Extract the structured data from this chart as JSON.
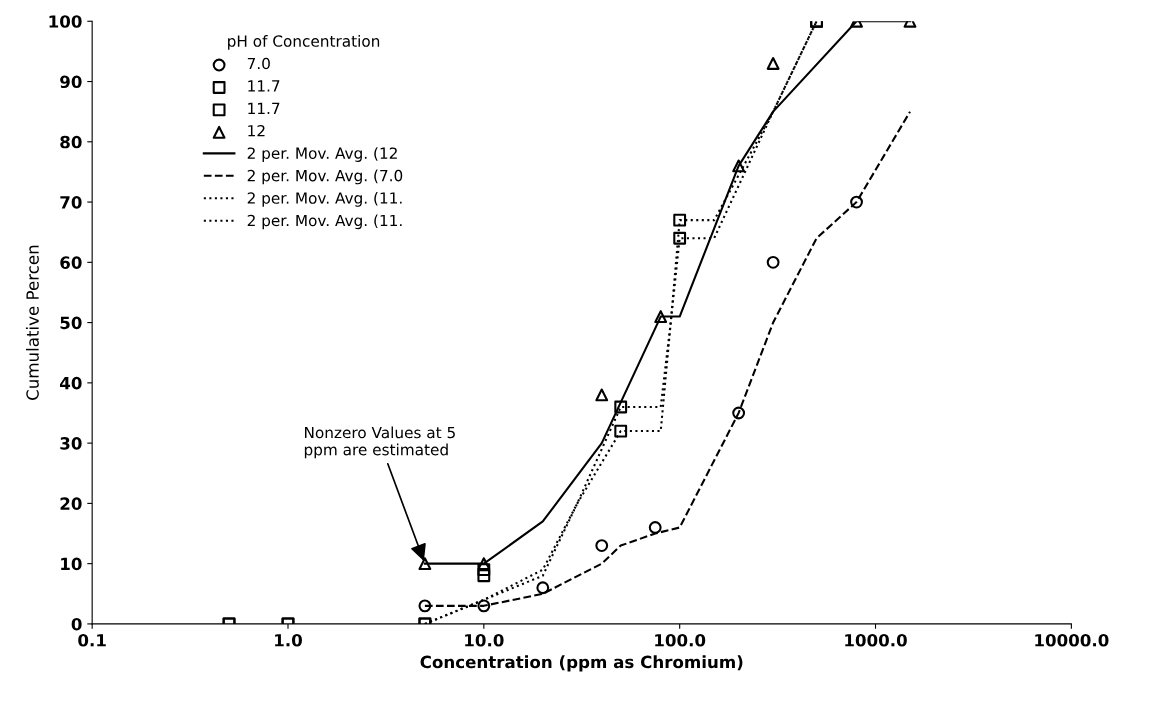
{
  "chart_data": {
    "type": "scatter",
    "xlabel": "Concentration (ppm as Chromium)",
    "ylabel": "Cumulative Percen",
    "legend_title": "pH of Concentration",
    "legend": "top left",
    "log": "x",
    "grid": false,
    "xlim": [
      0.1,
      10000
    ],
    "xticks": [
      {
        "value": 0.1,
        "label": "0.1"
      },
      {
        "value": 1,
        "label": "1.0"
      },
      {
        "value": 10,
        "label": "10.0"
      },
      {
        "value": 100,
        "label": "100.0"
      },
      {
        "value": 1000,
        "label": "1000.0"
      },
      {
        "value": 10000,
        "label": "10000.0"
      }
    ],
    "ylim": [
      0,
      100
    ],
    "yticks": [
      0,
      10,
      20,
      30,
      40,
      50,
      60,
      70,
      80,
      90,
      100
    ],
    "annotations": [
      {
        "text": "Nonzero Values at 5\nppm are estimated",
        "x": 5,
        "y": 10
      }
    ],
    "series": [
      {
        "name": "7.0",
        "marker": "circle",
        "color": "#000000",
        "x": [
          5,
          10,
          20,
          40,
          75,
          200,
          300,
          800
        ],
        "values": [
          3,
          3,
          6,
          13,
          16,
          35,
          60,
          70
        ]
      },
      {
        "name": "11.7",
        "marker": "square",
        "color": "#000000",
        "x": [
          0.5,
          1,
          5,
          10,
          50,
          100,
          500
        ],
        "values": [
          0,
          0,
          0,
          8,
          36,
          67,
          100
        ]
      },
      {
        "name": "11.7",
        "marker": "square",
        "color": "#000000",
        "x": [
          0.5,
          1,
          5,
          10,
          50,
          100,
          500
        ],
        "values": [
          0,
          0,
          0,
          9,
          32,
          64,
          100
        ]
      },
      {
        "name": "12",
        "marker": "triangle",
        "color": "#000000",
        "x": [
          5,
          10,
          40,
          80,
          200,
          300,
          800,
          1500
        ],
        "values": [
          10,
          10,
          38,
          51,
          76,
          93,
          100,
          100
        ]
      },
      {
        "name": "2 per. Mov. Avg. (12",
        "type": "line",
        "line_style": "solid",
        "color": "#000000",
        "x": [
          5,
          10,
          20,
          40,
          80,
          100,
          200,
          300,
          800,
          1500
        ],
        "values": [
          10,
          10,
          17,
          30,
          51,
          51,
          76,
          85,
          100,
          100
        ]
      },
      {
        "name": "2 per. Mov. Avg. (7.0",
        "type": "line",
        "line_style": "dashed",
        "color": "#000000",
        "x": [
          5,
          10,
          20,
          40,
          50,
          75,
          100,
          200,
          300,
          500,
          800,
          1500
        ],
        "values": [
          3,
          3,
          5,
          10,
          13,
          15,
          16,
          35,
          50,
          64,
          70,
          85
        ]
      },
      {
        "name": "2 per. Mov. Avg. (11.",
        "type": "line",
        "line_style": "dotted",
        "color": "#000000",
        "x": [
          5,
          10,
          20,
          30,
          50,
          80,
          90,
          100,
          150,
          300,
          500
        ],
        "values": [
          0,
          4,
          8,
          20,
          36,
          36,
          50,
          67,
          67,
          85,
          100
        ]
      },
      {
        "name": "2 per. Mov. Avg. (11.",
        "type": "line",
        "line_style": "dotted",
        "color": "#000000",
        "x": [
          5,
          10,
          20,
          30,
          50,
          80,
          90,
          100,
          150,
          300,
          500
        ],
        "values": [
          0,
          4,
          9,
          20,
          32,
          32,
          50,
          64,
          64,
          85,
          100
        ]
      }
    ]
  }
}
